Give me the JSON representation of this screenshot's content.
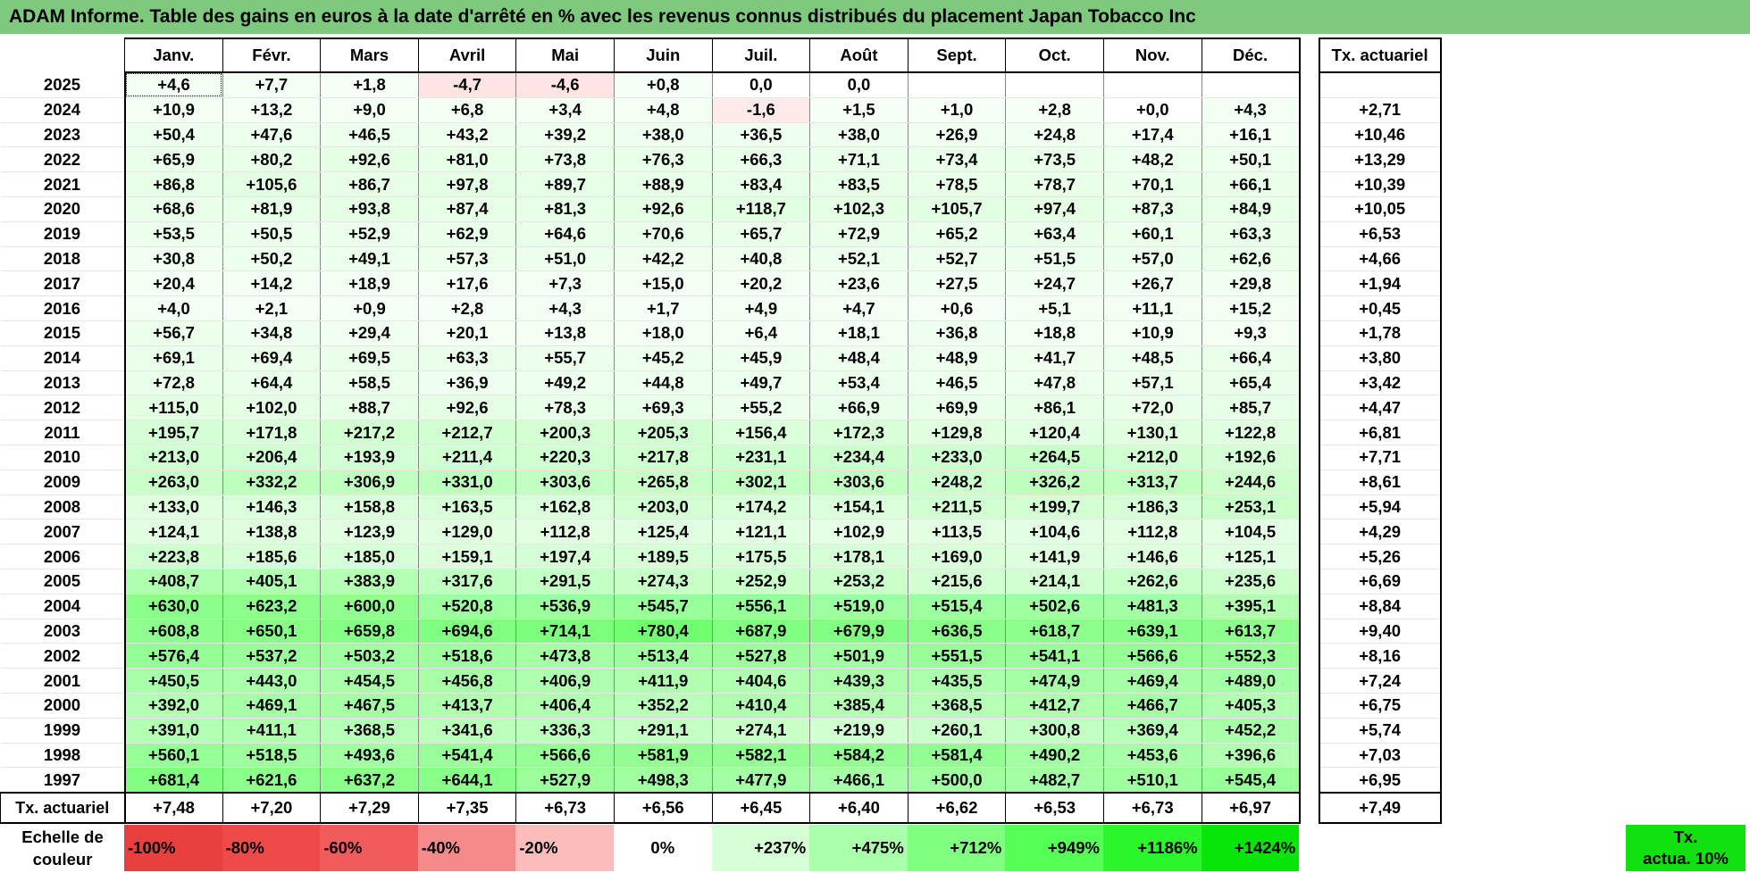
{
  "title": "ADAM Informe. Table des gains en euros à la date d'arrêté en % avec les revenus connus distribués du placement Japan Tobacco Inc",
  "chart_data": {
    "type": "heatmap",
    "title": "ADAM Informe. Table des gains en euros à la date d'arrêté en % avec les revenus connus distribués du placement Japan Tobacco Inc",
    "months": [
      "Janv.",
      "Févr.",
      "Mars",
      "Avril",
      "Mai",
      "Juin",
      "Juil.",
      "Août",
      "Sept.",
      "Oct.",
      "Nov.",
      "Déc."
    ],
    "actuarial_header": "Tx. actuariel",
    "rows": [
      {
        "year": "2025",
        "values": [
          "+4,6",
          "+7,7",
          "+1,8",
          "-4,7",
          "-4,6",
          "+0,8",
          "0,0",
          "0,0",
          "",
          "",
          "",
          ""
        ],
        "actuarial": ""
      },
      {
        "year": "2024",
        "values": [
          "+10,9",
          "+13,2",
          "+9,0",
          "+6,8",
          "+3,4",
          "+4,8",
          "-1,6",
          "+1,5",
          "+1,0",
          "+2,8",
          "+0,0",
          "+4,3"
        ],
        "actuarial": "+2,71"
      },
      {
        "year": "2023",
        "values": [
          "+50,4",
          "+47,6",
          "+46,5",
          "+43,2",
          "+39,2",
          "+38,0",
          "+36,5",
          "+38,0",
          "+26,9",
          "+24,8",
          "+17,4",
          "+16,1"
        ],
        "actuarial": "+10,46"
      },
      {
        "year": "2022",
        "values": [
          "+65,9",
          "+80,2",
          "+92,6",
          "+81,0",
          "+73,8",
          "+76,3",
          "+66,3",
          "+71,1",
          "+73,4",
          "+73,5",
          "+48,2",
          "+50,1"
        ],
        "actuarial": "+13,29"
      },
      {
        "year": "2021",
        "values": [
          "+86,8",
          "+105,6",
          "+86,7",
          "+97,8",
          "+89,7",
          "+88,9",
          "+83,4",
          "+83,5",
          "+78,5",
          "+78,7",
          "+70,1",
          "+66,1"
        ],
        "actuarial": "+10,39"
      },
      {
        "year": "2020",
        "values": [
          "+68,6",
          "+81,9",
          "+93,8",
          "+87,4",
          "+81,3",
          "+92,6",
          "+118,7",
          "+102,3",
          "+105,7",
          "+97,4",
          "+87,3",
          "+84,9"
        ],
        "actuarial": "+10,05"
      },
      {
        "year": "2019",
        "values": [
          "+53,5",
          "+50,5",
          "+52,9",
          "+62,9",
          "+64,6",
          "+70,6",
          "+65,7",
          "+72,9",
          "+65,2",
          "+63,4",
          "+60,1",
          "+63,3"
        ],
        "actuarial": "+6,53"
      },
      {
        "year": "2018",
        "values": [
          "+30,8",
          "+50,2",
          "+49,1",
          "+57,3",
          "+51,0",
          "+42,2",
          "+40,8",
          "+52,1",
          "+52,7",
          "+51,5",
          "+57,0",
          "+62,6"
        ],
        "actuarial": "+4,66"
      },
      {
        "year": "2017",
        "values": [
          "+20,4",
          "+14,2",
          "+18,9",
          "+17,6",
          "+7,3",
          "+15,0",
          "+20,2",
          "+23,6",
          "+27,5",
          "+24,7",
          "+26,7",
          "+29,8"
        ],
        "actuarial": "+1,94"
      },
      {
        "year": "2016",
        "values": [
          "+4,0",
          "+2,1",
          "+0,9",
          "+2,8",
          "+4,3",
          "+1,7",
          "+4,9",
          "+4,7",
          "+0,6",
          "+5,1",
          "+11,1",
          "+15,2"
        ],
        "actuarial": "+0,45"
      },
      {
        "year": "2015",
        "values": [
          "+56,7",
          "+34,8",
          "+29,4",
          "+20,1",
          "+13,8",
          "+18,0",
          "+6,4",
          "+18,1",
          "+36,8",
          "+18,8",
          "+10,9",
          "+9,3"
        ],
        "actuarial": "+1,78"
      },
      {
        "year": "2014",
        "values": [
          "+69,1",
          "+69,4",
          "+69,5",
          "+63,3",
          "+55,7",
          "+45,2",
          "+45,9",
          "+48,4",
          "+48,9",
          "+41,7",
          "+48,5",
          "+66,4"
        ],
        "actuarial": "+3,80"
      },
      {
        "year": "2013",
        "values": [
          "+72,8",
          "+64,4",
          "+58,5",
          "+36,9",
          "+49,2",
          "+44,8",
          "+49,7",
          "+53,4",
          "+46,5",
          "+47,8",
          "+57,1",
          "+65,4"
        ],
        "actuarial": "+3,42"
      },
      {
        "year": "2012",
        "values": [
          "+115,0",
          "+102,0",
          "+88,7",
          "+92,6",
          "+78,3",
          "+69,3",
          "+55,2",
          "+66,9",
          "+69,9",
          "+86,1",
          "+72,0",
          "+85,7"
        ],
        "actuarial": "+4,47"
      },
      {
        "year": "2011",
        "values": [
          "+195,7",
          "+171,8",
          "+217,2",
          "+212,7",
          "+200,3",
          "+205,3",
          "+156,4",
          "+172,3",
          "+129,8",
          "+120,4",
          "+130,1",
          "+122,8"
        ],
        "actuarial": "+6,81"
      },
      {
        "year": "2010",
        "values": [
          "+213,0",
          "+206,4",
          "+193,9",
          "+211,4",
          "+220,3",
          "+217,8",
          "+231,1",
          "+234,4",
          "+233,0",
          "+264,5",
          "+212,0",
          "+192,6"
        ],
        "actuarial": "+7,71"
      },
      {
        "year": "2009",
        "values": [
          "+263,0",
          "+332,2",
          "+306,9",
          "+331,0",
          "+303,6",
          "+265,8",
          "+302,1",
          "+303,6",
          "+248,2",
          "+326,2",
          "+313,7",
          "+244,6"
        ],
        "actuarial": "+8,61"
      },
      {
        "year": "2008",
        "values": [
          "+133,0",
          "+146,3",
          "+158,8",
          "+163,5",
          "+162,8",
          "+203,0",
          "+174,2",
          "+154,1",
          "+211,5",
          "+199,7",
          "+186,3",
          "+253,1"
        ],
        "actuarial": "+5,94"
      },
      {
        "year": "2007",
        "values": [
          "+124,1",
          "+138,8",
          "+123,9",
          "+129,0",
          "+112,8",
          "+125,4",
          "+121,1",
          "+102,9",
          "+113,5",
          "+104,6",
          "+112,8",
          "+104,5"
        ],
        "actuarial": "+4,29"
      },
      {
        "year": "2006",
        "values": [
          "+223,8",
          "+185,6",
          "+185,0",
          "+159,1",
          "+197,4",
          "+189,5",
          "+175,5",
          "+178,1",
          "+169,0",
          "+141,9",
          "+146,6",
          "+125,1"
        ],
        "actuarial": "+5,26"
      },
      {
        "year": "2005",
        "values": [
          "+408,7",
          "+405,1",
          "+383,9",
          "+317,6",
          "+291,5",
          "+274,3",
          "+252,9",
          "+253,2",
          "+215,6",
          "+214,1",
          "+262,6",
          "+235,6"
        ],
        "actuarial": "+6,69"
      },
      {
        "year": "2004",
        "values": [
          "+630,0",
          "+623,2",
          "+600,0",
          "+520,8",
          "+536,9",
          "+545,7",
          "+556,1",
          "+519,0",
          "+515,4",
          "+502,6",
          "+481,3",
          "+395,1"
        ],
        "actuarial": "+8,84"
      },
      {
        "year": "2003",
        "values": [
          "+608,8",
          "+650,1",
          "+659,8",
          "+694,6",
          "+714,1",
          "+780,4",
          "+687,9",
          "+679,9",
          "+636,5",
          "+618,7",
          "+639,1",
          "+613,7"
        ],
        "actuarial": "+9,40"
      },
      {
        "year": "2002",
        "values": [
          "+576,4",
          "+537,2",
          "+503,2",
          "+518,6",
          "+473,8",
          "+513,4",
          "+527,8",
          "+501,9",
          "+551,5",
          "+541,1",
          "+566,6",
          "+552,3"
        ],
        "actuarial": "+8,16"
      },
      {
        "year": "2001",
        "values": [
          "+450,5",
          "+443,0",
          "+454,5",
          "+456,8",
          "+406,9",
          "+411,9",
          "+404,6",
          "+439,3",
          "+435,5",
          "+474,9",
          "+469,4",
          "+489,0"
        ],
        "actuarial": "+7,24"
      },
      {
        "year": "2000",
        "values": [
          "+392,0",
          "+469,1",
          "+467,5",
          "+413,7",
          "+406,4",
          "+352,2",
          "+410,4",
          "+385,4",
          "+368,5",
          "+412,7",
          "+466,7",
          "+405,3"
        ],
        "actuarial": "+6,75"
      },
      {
        "year": "1999",
        "values": [
          "+391,0",
          "+411,1",
          "+368,5",
          "+341,6",
          "+336,3",
          "+291,1",
          "+274,1",
          "+219,9",
          "+260,1",
          "+300,8",
          "+369,4",
          "+452,2"
        ],
        "actuarial": "+5,74"
      },
      {
        "year": "1998",
        "values": [
          "+560,1",
          "+518,5",
          "+493,6",
          "+541,4",
          "+566,6",
          "+581,9",
          "+582,1",
          "+584,2",
          "+581,4",
          "+490,2",
          "+453,6",
          "+396,6"
        ],
        "actuarial": "+7,03"
      },
      {
        "year": "1997",
        "values": [
          "+681,4",
          "+621,6",
          "+637,2",
          "+644,1",
          "+527,9",
          "+498,3",
          "+477,9",
          "+466,1",
          "+500,0",
          "+482,7",
          "+510,1",
          "+545,4"
        ],
        "actuarial": "+6,95"
      }
    ],
    "footer": {
      "label": "Tx. actuariel",
      "values": [
        "+7,48",
        "+7,20",
        "+7,29",
        "+7,35",
        "+6,73",
        "+6,56",
        "+6,45",
        "+6,40",
        "+6,62",
        "+6,53",
        "+6,73",
        "+6,97"
      ],
      "actuarial": "+7,49"
    },
    "color_scale": {
      "label_line1": "Echelle de",
      "label_line2": "couleur",
      "stops": [
        {
          "label": "-100%",
          "color": "#e8403f",
          "align": "left"
        },
        {
          "label": "-80%",
          "color": "#ee4a4a",
          "align": "left"
        },
        {
          "label": "-60%",
          "color": "#f25b5b",
          "align": "left"
        },
        {
          "label": "-40%",
          "color": "#f58a8a",
          "align": "left"
        },
        {
          "label": "-20%",
          "color": "#fbbcbc",
          "align": "left"
        },
        {
          "label": "0%",
          "color": "#ffffff",
          "align": "center"
        },
        {
          "label": "+237%",
          "color": "#d6ffd6",
          "align": "right"
        },
        {
          "label": "+475%",
          "color": "#aaffaa",
          "align": "right"
        },
        {
          "label": "+712%",
          "color": "#80ff80",
          "align": "right"
        },
        {
          "label": "+949%",
          "color": "#55ff55",
          "align": "right"
        },
        {
          "label": "+1186%",
          "color": "#2bf52b",
          "align": "right"
        },
        {
          "label": "+1424%",
          "color": "#08e508",
          "align": "right"
        }
      ],
      "actuarial_label_line1": "Tx.",
      "actuarial_label_line2": "actua. 10%",
      "actuarial_color": "#11e011"
    }
  }
}
